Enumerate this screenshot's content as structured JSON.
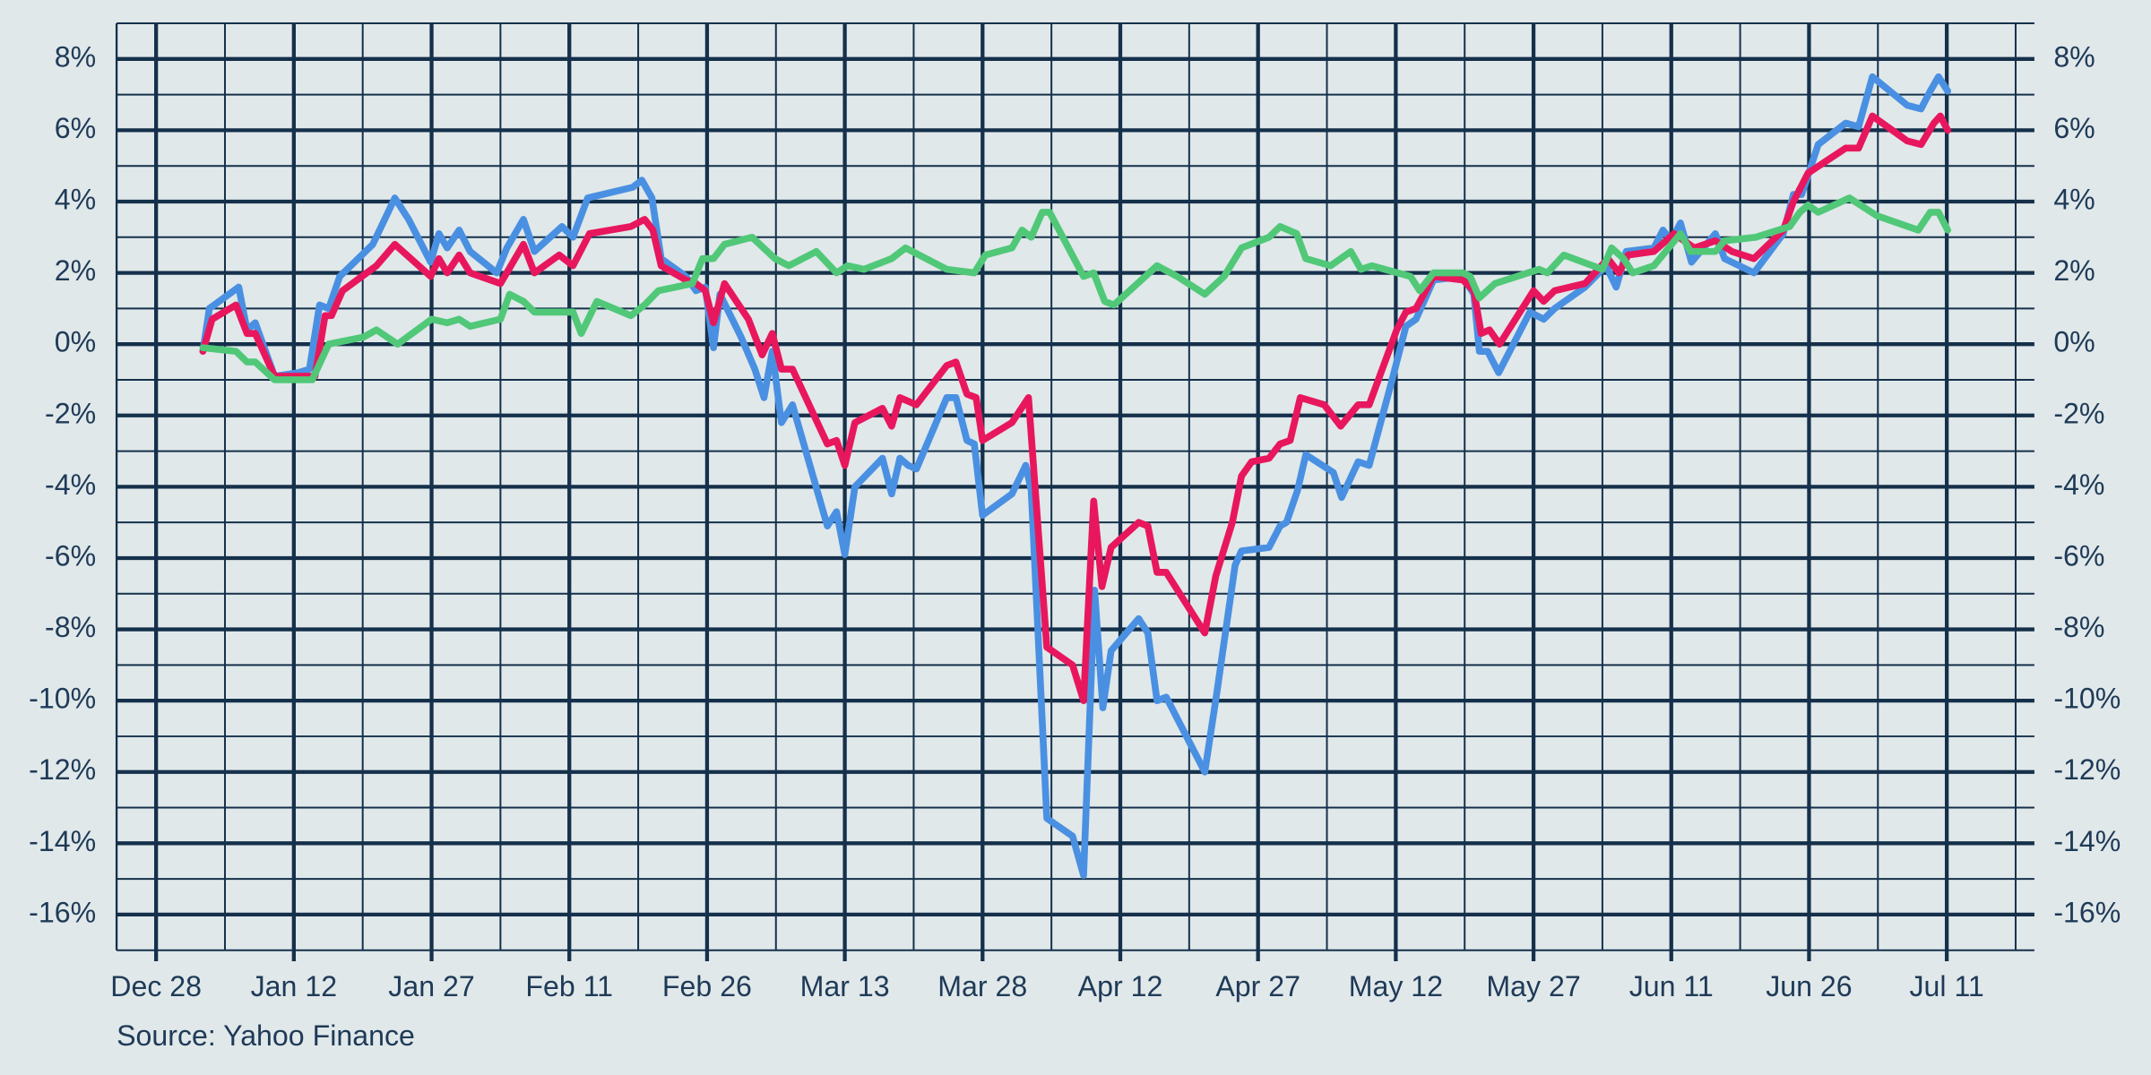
{
  "chart_data": {
    "type": "line",
    "source": "Source: Yahoo Finance",
    "xlim": [
      -4.3,
      202.6
    ],
    "xticks": [
      {
        "value": 0,
        "label": "Dec 28"
      },
      {
        "value": 15,
        "label": "Jan 12"
      },
      {
        "value": 30,
        "label": "Jan 27"
      },
      {
        "value": 45,
        "label": "Feb 11"
      },
      {
        "value": 60,
        "label": "Feb 26"
      },
      {
        "value": 75,
        "label": "Mar 13"
      },
      {
        "value": 90,
        "label": "Mar 28"
      },
      {
        "value": 105,
        "label": "Apr 12"
      },
      {
        "value": 120,
        "label": "Apr 27"
      },
      {
        "value": 135,
        "label": "May 12"
      },
      {
        "value": 150,
        "label": "May 27"
      },
      {
        "value": 165,
        "label": "Jun 11"
      },
      {
        "value": 180,
        "label": "Jun 26"
      },
      {
        "value": 195,
        "label": "Jul 11"
      }
    ],
    "xticks_minor": [
      7.5,
      22.5,
      37.5,
      52.5,
      67.5,
      82.5,
      97.5,
      112.5,
      127.5,
      142.5,
      157.5,
      172.5,
      187.5,
      202.5
    ],
    "ylim": [
      -17,
      9
    ],
    "yticks": [
      {
        "value": 8,
        "label": "8%"
      },
      {
        "value": 6,
        "label": "6%"
      },
      {
        "value": 4,
        "label": "4%"
      },
      {
        "value": 2,
        "label": "2%"
      },
      {
        "value": 0,
        "label": "0%"
      },
      {
        "value": -2,
        "label": "-2%"
      },
      {
        "value": -4,
        "label": "-4%"
      },
      {
        "value": -6,
        "label": "-6%"
      },
      {
        "value": -8,
        "label": "-8%"
      },
      {
        "value": -10,
        "label": "-10%"
      },
      {
        "value": -12,
        "label": "-12%"
      },
      {
        "value": -14,
        "label": "-14%"
      },
      {
        "value": -16,
        "label": "-16%"
      }
    ],
    "yticks_minor": [
      9,
      7,
      5,
      3,
      1,
      -1,
      -3,
      -5,
      -7,
      -9,
      -11,
      -13,
      -15,
      -17
    ],
    "grid": true,
    "series": [
      {
        "color": "#4a90e2",
        "x": [
          5.1,
          5.8,
          9.0,
          9.9,
          10.8,
          12.9,
          15.5,
          16.7,
          17.8,
          18.8,
          20.0,
          23.6,
          26.0,
          27.5,
          29.9,
          30.8,
          31.7,
          33.0,
          34.2,
          37.1,
          38.2,
          40.0,
          41.2,
          44.2,
          45.4,
          47.0,
          51.9,
          52.9,
          54.0,
          55.0,
          57.7,
          58.8,
          59.8,
          60.7,
          61.4,
          63.7,
          65.2,
          66.2,
          67.1,
          68.1,
          69.3,
          73.1,
          74.1,
          75.0,
          76.1,
          79.1,
          80.1,
          81.0,
          81.9,
          82.8,
          86.1,
          87.1,
          88.3,
          89.1,
          90.0,
          93.2,
          94.7,
          95.3,
          97.0,
          99.8,
          101.0,
          102.2,
          103.1,
          104.0,
          107.0,
          108.0,
          109.0,
          110.0,
          114.2,
          115.5,
          117.5,
          118.2,
          121.2,
          122.4,
          123.1,
          124.3,
          125.2,
          128.2,
          129.1,
          130.9,
          132.1,
          134.6,
          136.1,
          137.2,
          139.1,
          142.3,
          143.5,
          144.1,
          145.0,
          146.2,
          149.6,
          151.1,
          152.3,
          155.6,
          157.9,
          159.0,
          160.1,
          163.1,
          164.1,
          165.0,
          166.0,
          167.2,
          169.8,
          170.8,
          174.0,
          177.2,
          178.3,
          179.2,
          181.0,
          184.0,
          185.4,
          186.9,
          190.7,
          192.2,
          193.2,
          194.1,
          195.1
        ],
        "values": [
          -0.2,
          1.0,
          1.6,
          0.4,
          0.6,
          -0.9,
          -0.8,
          -0.7,
          1.1,
          1.0,
          1.9,
          2.8,
          4.1,
          3.5,
          2.3,
          3.1,
          2.7,
          3.2,
          2.6,
          2.0,
          2.7,
          3.5,
          2.6,
          3.3,
          3.0,
          4.1,
          4.4,
          4.6,
          4.1,
          2.4,
          1.9,
          1.5,
          1.6,
          -0.1,
          1.4,
          0.2,
          -0.7,
          -1.5,
          -0.2,
          -2.2,
          -1.7,
          -5.1,
          -4.7,
          -5.9,
          -4.0,
          -3.2,
          -4.2,
          -3.2,
          -3.4,
          -3.5,
          -1.5,
          -1.5,
          -2.7,
          -2.8,
          -4.8,
          -4.2,
          -3.4,
          -4.1,
          -13.3,
          -13.8,
          -14.9,
          -6.9,
          -10.2,
          -8.6,
          -7.7,
          -8.1,
          -10.0,
          -9.9,
          -12.0,
          -9.8,
          -6.2,
          -5.8,
          -5.7,
          -5.1,
          -5.0,
          -4.1,
          -3.1,
          -3.6,
          -4.3,
          -3.3,
          -3.4,
          -1.0,
          0.5,
          0.7,
          1.8,
          1.9,
          1.4,
          -0.2,
          -0.2,
          -0.8,
          0.9,
          0.7,
          1.0,
          1.6,
          2.2,
          1.6,
          2.6,
          2.7,
          3.2,
          2.9,
          3.4,
          2.3,
          3.1,
          2.4,
          2.0,
          3.1,
          4.2,
          4.2,
          5.6,
          6.2,
          6.1,
          7.5,
          6.7,
          6.6,
          7.1,
          7.5,
          7.1
        ]
      },
      {
        "color": "#e8175d",
        "x": [
          5.1,
          6.1,
          8.7,
          9.9,
          10.8,
          12.9,
          17.3,
          18.4,
          19.1,
          20.3,
          24.0,
          26.0,
          29.9,
          30.8,
          31.7,
          33.0,
          34.2,
          37.5,
          40.0,
          41.2,
          43.9,
          45.4,
          47.2,
          51.7,
          53.2,
          54.1,
          55.0,
          57.7,
          58.8,
          59.8,
          60.7,
          61.9,
          64.5,
          66.0,
          67.1,
          68.1,
          69.3,
          73.1,
          74.1,
          75.0,
          76.1,
          79.1,
          80.1,
          81.0,
          82.8,
          86.1,
          87.1,
          88.3,
          89.3,
          90.0,
          93.2,
          95.0,
          97.0,
          99.8,
          101.0,
          102.1,
          103.0,
          104.0,
          107.0,
          108.0,
          109.0,
          110.0,
          114.2,
          115.4,
          117.2,
          118.2,
          119.3,
          121.2,
          122.4,
          123.5,
          124.6,
          127.2,
          129.0,
          130.9,
          132.1,
          135.1,
          136.1,
          137.2,
          139.1,
          142.3,
          143.5,
          144.3,
          145.2,
          146.3,
          150.0,
          151.1,
          152.3,
          155.6,
          158.1,
          159.3,
          160.3,
          163.1,
          165.3,
          167.5,
          169.8,
          171.6,
          174.0,
          177.2,
          178.3,
          179.9,
          184.0,
          185.4,
          186.9,
          190.7,
          192.2,
          193.6,
          194.3,
          195.1
        ],
        "values": [
          -0.2,
          0.7,
          1.1,
          0.3,
          0.3,
          -0.9,
          -0.9,
          0.8,
          0.8,
          1.5,
          2.2,
          2.8,
          1.9,
          2.4,
          2.0,
          2.5,
          2.0,
          1.7,
          2.8,
          2.0,
          2.5,
          2.2,
          3.1,
          3.3,
          3.5,
          3.2,
          2.2,
          1.8,
          1.7,
          1.5,
          0.6,
          1.7,
          0.7,
          -0.3,
          0.3,
          -0.7,
          -0.7,
          -2.8,
          -2.7,
          -3.4,
          -2.2,
          -1.8,
          -2.3,
          -1.5,
          -1.7,
          -0.6,
          -0.5,
          -1.4,
          -1.5,
          -2.7,
          -2.2,
          -1.5,
          -8.5,
          -9.0,
          -10.0,
          -4.4,
          -6.8,
          -5.7,
          -5.0,
          -5.1,
          -6.4,
          -6.4,
          -8.1,
          -6.5,
          -5.0,
          -3.7,
          -3.3,
          -3.2,
          -2.8,
          -2.7,
          -1.5,
          -1.7,
          -2.3,
          -1.7,
          -1.7,
          0.4,
          0.9,
          1.0,
          1.9,
          1.8,
          1.5,
          0.3,
          0.4,
          0.0,
          1.5,
          1.2,
          1.5,
          1.7,
          2.4,
          2.0,
          2.5,
          2.6,
          3.1,
          2.7,
          2.9,
          2.6,
          2.4,
          3.2,
          4.0,
          4.8,
          5.5,
          5.5,
          6.4,
          5.7,
          5.6,
          6.2,
          6.4,
          6.0
        ]
      },
      {
        "color": "#50c878",
        "x": [
          5.1,
          8.7,
          9.9,
          10.8,
          12.9,
          15.5,
          17.0,
          18.8,
          22.6,
          24.0,
          26.3,
          30.0,
          31.7,
          33.0,
          34.2,
          37.5,
          38.5,
          40.0,
          41.2,
          44.2,
          45.4,
          46.3,
          48.0,
          51.7,
          53.2,
          54.7,
          58.4,
          59.5,
          60.7,
          61.9,
          64.9,
          67.4,
          68.9,
          71.9,
          74.1,
          75.3,
          77.1,
          80.1,
          81.6,
          86.1,
          89.1,
          90.3,
          93.2,
          94.3,
          95.3,
          96.5,
          97.3,
          101.0,
          102.1,
          103.3,
          104.3,
          109.0,
          111.2,
          114.2,
          116.3,
          118.2,
          121.2,
          122.4,
          124.2,
          125.2,
          127.9,
          130.1,
          131.2,
          132.4,
          136.6,
          137.6,
          139.1,
          142.3,
          143.1,
          144.1,
          145.8,
          150.6,
          151.5,
          153.3,
          157.5,
          158.5,
          159.8,
          160.8,
          163.1,
          166.0,
          167.1,
          169.8,
          170.8,
          174.2,
          177.9,
          179.0,
          179.9,
          181.0,
          184.4,
          187.4,
          191.9,
          193.2,
          194.1,
          195.1
        ],
        "values": [
          -0.1,
          -0.2,
          -0.5,
          -0.5,
          -1.0,
          -1.0,
          -1.0,
          0.0,
          0.2,
          0.4,
          0.0,
          0.7,
          0.6,
          0.7,
          0.5,
          0.7,
          1.4,
          1.2,
          0.9,
          0.9,
          0.9,
          0.3,
          1.2,
          0.8,
          1.1,
          1.5,
          1.7,
          2.4,
          2.4,
          2.8,
          3.0,
          2.4,
          2.2,
          2.6,
          2.0,
          2.2,
          2.1,
          2.4,
          2.7,
          2.1,
          2.0,
          2.5,
          2.7,
          3.2,
          3.0,
          3.7,
          3.7,
          1.9,
          2.0,
          1.2,
          1.1,
          2.2,
          1.9,
          1.4,
          1.9,
          2.7,
          3.0,
          3.3,
          3.1,
          2.4,
          2.2,
          2.6,
          2.1,
          2.2,
          1.9,
          1.5,
          2.0,
          2.0,
          1.9,
          1.3,
          1.7,
          2.1,
          2.0,
          2.5,
          2.1,
          2.7,
          2.4,
          2.0,
          2.2,
          3.1,
          2.6,
          2.6,
          2.9,
          3.0,
          3.3,
          3.7,
          3.9,
          3.7,
          4.1,
          3.6,
          3.2,
          3.7,
          3.7,
          3.2
        ]
      }
    ]
  }
}
